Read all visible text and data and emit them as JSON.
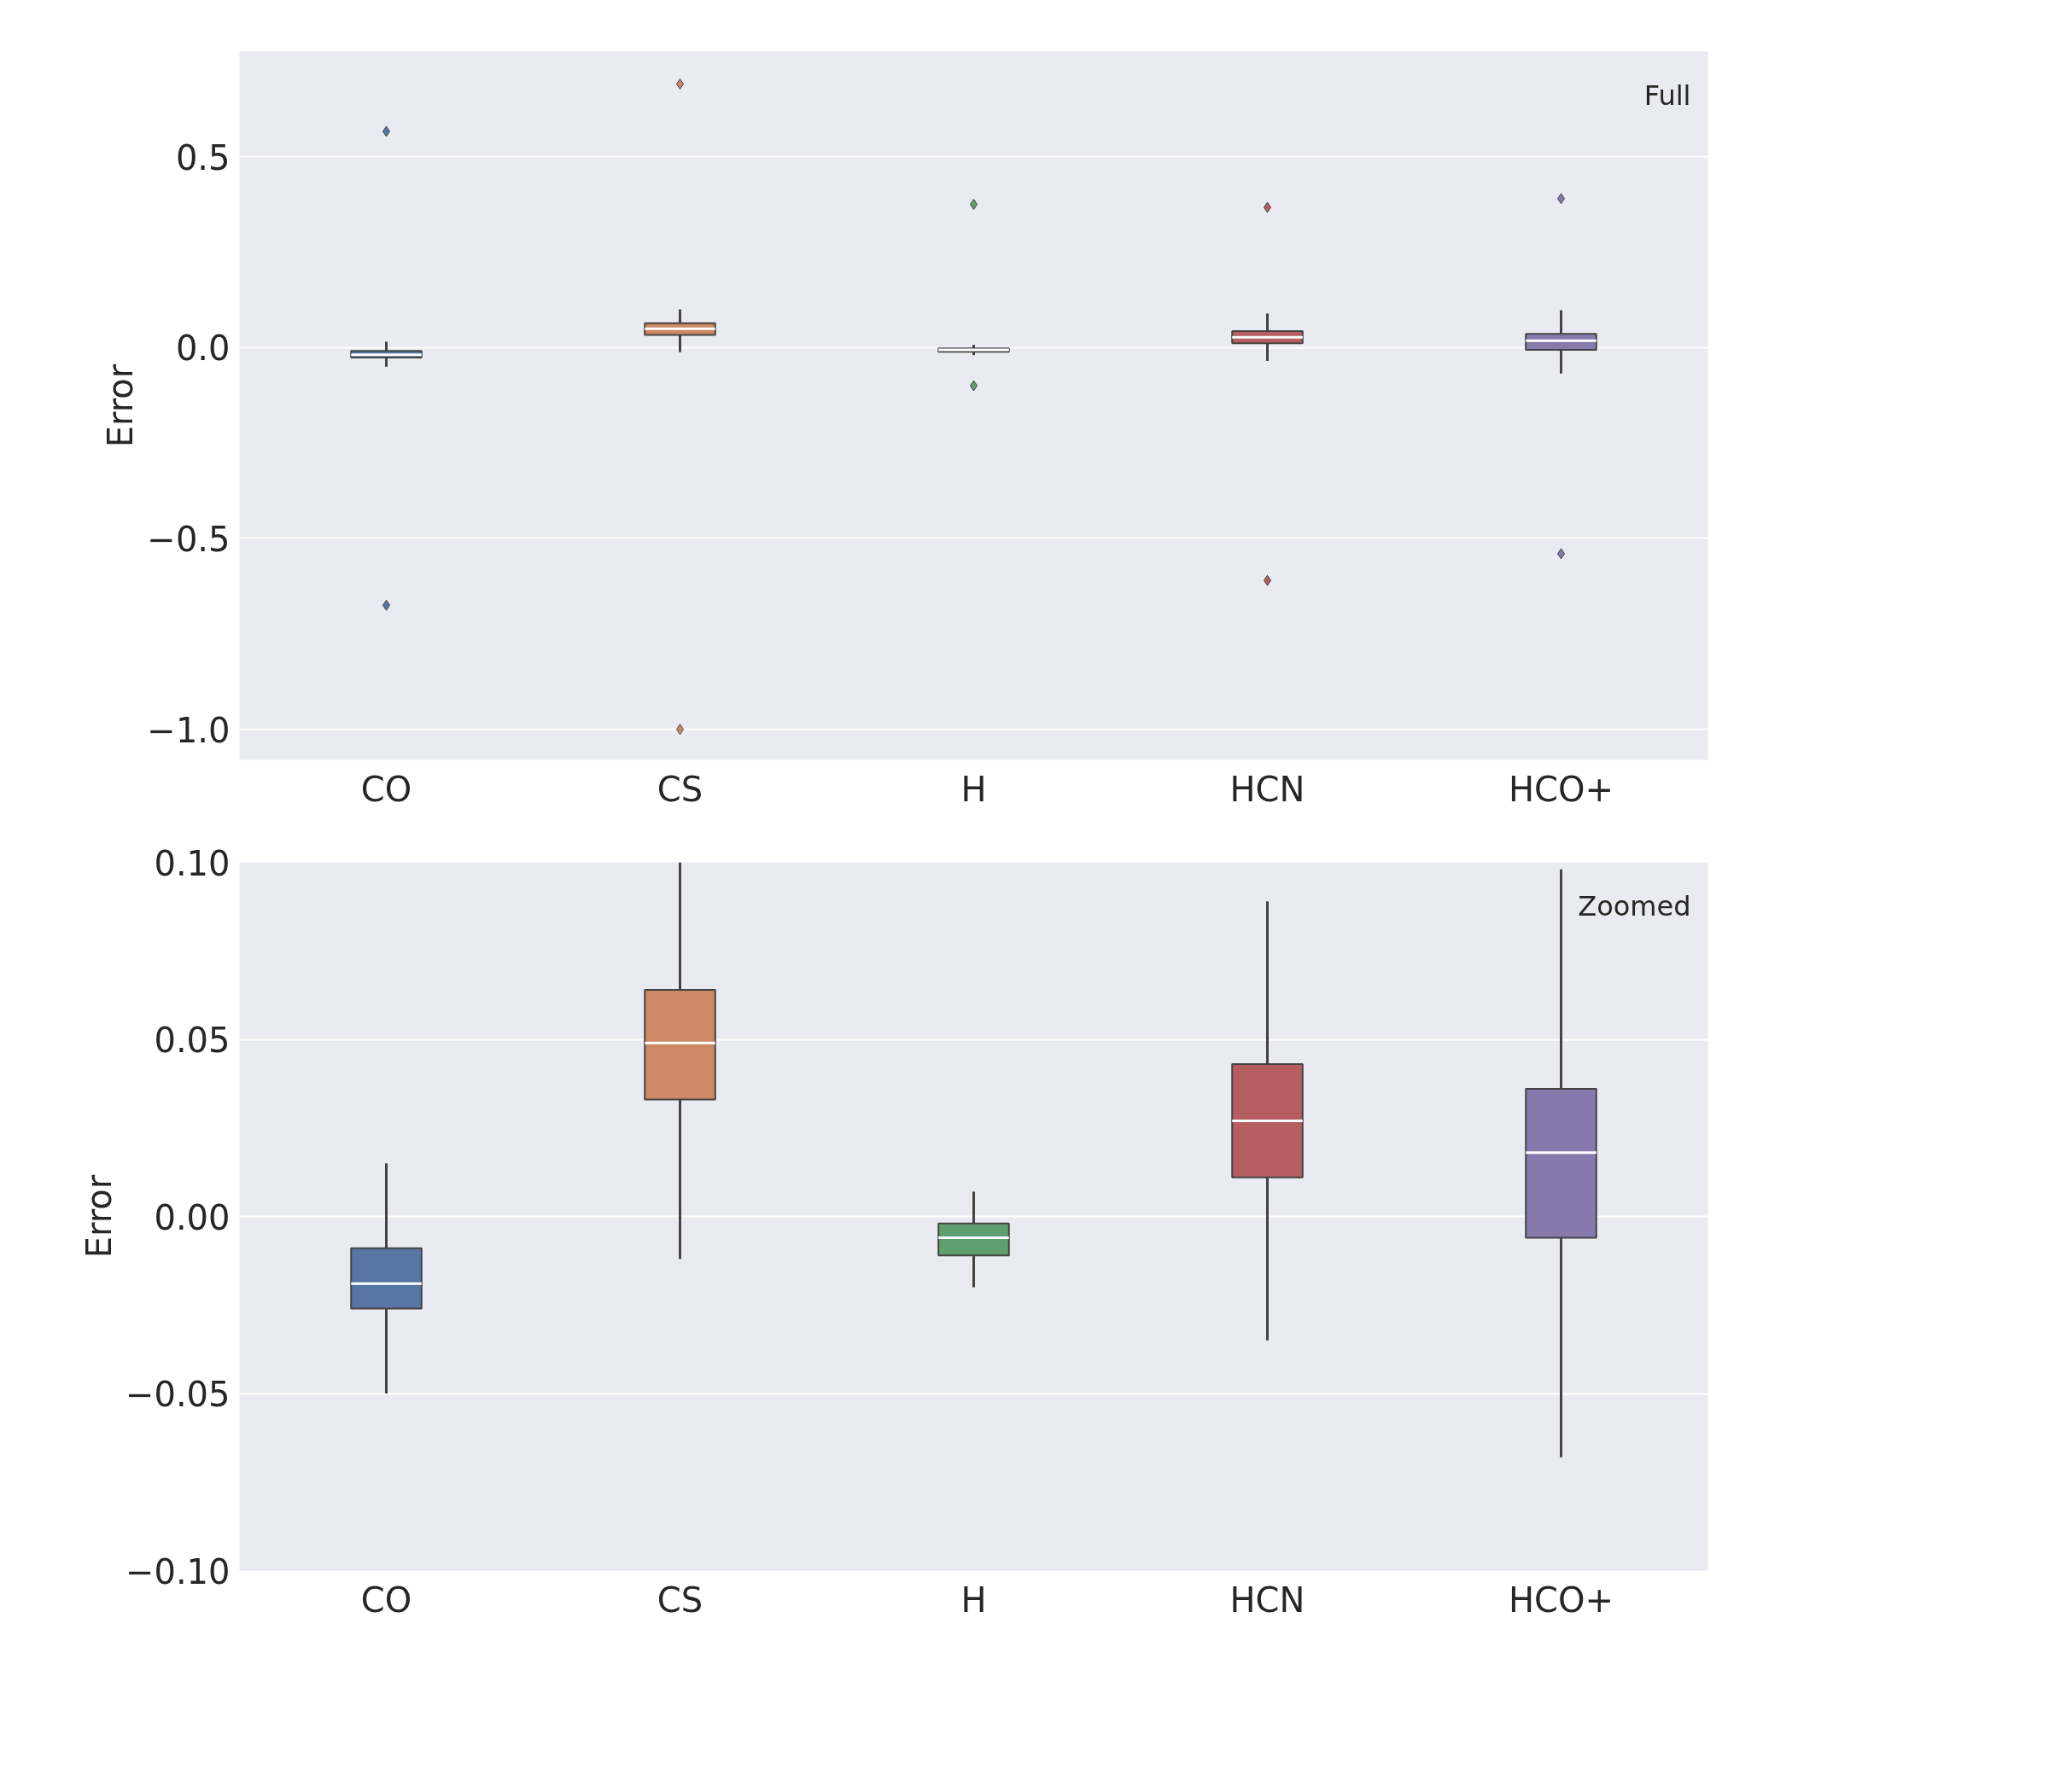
{
  "chart_data": [
    {
      "type": "box",
      "ylabel": "Error",
      "annotations": [
        "Full"
      ],
      "categories": [
        "CO",
        "CS",
        "H",
        "HCN",
        "HCO+"
      ],
      "colors": [
        "#5875a4",
        "#cc8963",
        "#5f9e6e",
        "#b55d60",
        "#857aab"
      ],
      "boxes": [
        {
          "low": -0.05,
          "q1": -0.026,
          "median": -0.019,
          "q3": -0.009,
          "high": 0.015,
          "outliers": [
            -0.675,
            0.566
          ]
        },
        {
          "low": -0.012,
          "q1": 0.033,
          "median": 0.049,
          "q3": 0.064,
          "high": 0.1,
          "outliers": [
            -1.0,
            0.69
          ]
        },
        {
          "low": -0.02,
          "q1": -0.011,
          "median": -0.006,
          "q3": -0.002,
          "high": 0.007,
          "outliers": [
            -0.1,
            0.375
          ]
        },
        {
          "low": -0.035,
          "q1": 0.011,
          "median": 0.027,
          "q3": 0.043,
          "high": 0.089,
          "outliers": [
            -0.61,
            0.367
          ]
        },
        {
          "low": -0.068,
          "q1": -0.006,
          "median": 0.018,
          "q3": 0.036,
          "high": 0.098,
          "outliers": [
            -0.54,
            0.39
          ]
        }
      ],
      "ylim": [
        -1.08,
        0.775
      ],
      "yticks": [
        {
          "value": -1.0,
          "label": "−1.0"
        },
        {
          "value": -0.5,
          "label": "−0.5"
        },
        {
          "value": 0.0,
          "label": "0.0"
        },
        {
          "value": 0.5,
          "label": "0.5"
        }
      ],
      "grid": "y"
    },
    {
      "type": "box",
      "ylabel": "Error",
      "annotations": [
        "Zoomed"
      ],
      "categories": [
        "CO",
        "CS",
        "H",
        "HCN",
        "HCO+"
      ],
      "colors": [
        "#5875a4",
        "#cc8963",
        "#5f9e6e",
        "#b55d60",
        "#857aab"
      ],
      "boxes": [
        {
          "low": -0.05,
          "q1": -0.026,
          "median": -0.019,
          "q3": -0.009,
          "high": 0.015
        },
        {
          "low": -0.012,
          "q1": 0.033,
          "median": 0.049,
          "q3": 0.064,
          "high": 0.1
        },
        {
          "low": -0.02,
          "q1": -0.011,
          "median": -0.006,
          "q3": -0.002,
          "high": 0.007
        },
        {
          "low": -0.035,
          "q1": 0.011,
          "median": 0.027,
          "q3": 0.043,
          "high": 0.089
        },
        {
          "low": -0.068,
          "q1": -0.006,
          "median": 0.018,
          "q3": 0.036,
          "high": 0.098
        }
      ],
      "ylim": [
        -0.1,
        0.1
      ],
      "yticks": [
        {
          "value": -0.1,
          "label": "−0.10"
        },
        {
          "value": -0.05,
          "label": "−0.05"
        },
        {
          "value": 0.0,
          "label": "0.00"
        },
        {
          "value": 0.05,
          "label": "0.05"
        },
        {
          "value": 0.1,
          "label": "0.10"
        }
      ],
      "grid": "y"
    }
  ]
}
